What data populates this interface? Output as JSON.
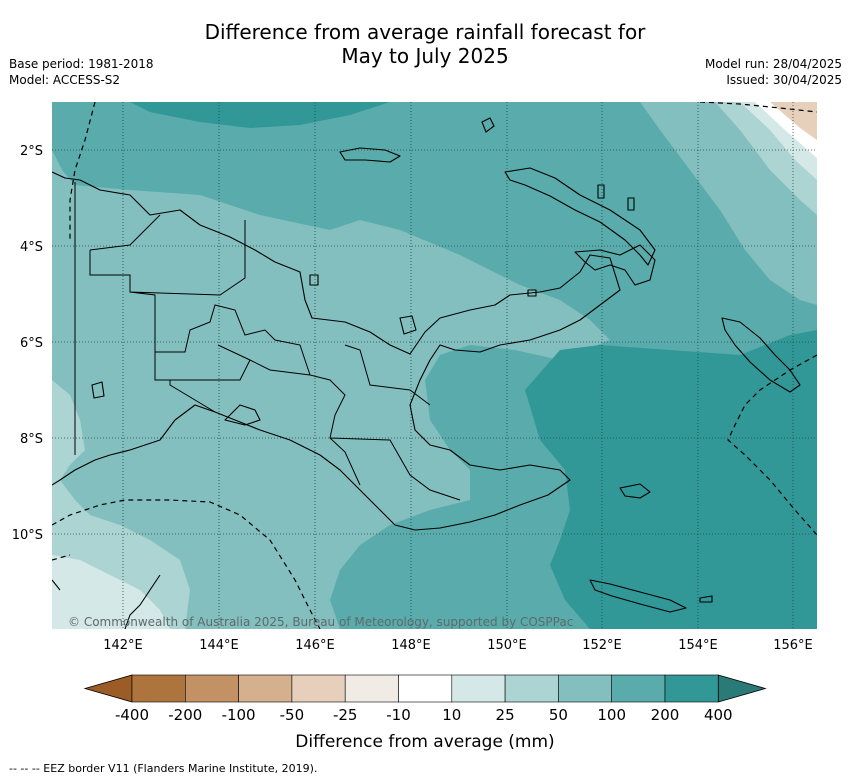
{
  "header": {
    "title_line1": "Difference from average rainfall forecast for",
    "title_line2": "May to July 2025",
    "base_period": "Base period: 1981-2018",
    "model": "Model: ACCESS-S2",
    "model_run": "Model run: 28/04/2025",
    "issued": "Issued: 30/04/2025"
  },
  "map": {
    "lat_labels": [
      "2°S",
      "4°S",
      "6°S",
      "8°S",
      "10°S"
    ],
    "lon_labels": [
      "142°E",
      "144°E",
      "146°E",
      "148°E",
      "150°E",
      "152°E",
      "154°E",
      "156°E"
    ],
    "copyright": "© Commonwealth of Australia 2025, Bureau of Meteorology, supported by COSPPac"
  },
  "colorbar": {
    "title": "Difference from average (mm)",
    "labels": [
      "-400",
      "-200",
      "-100",
      "-50",
      "-25",
      "-10",
      "10",
      "25",
      "50",
      "100",
      "200",
      "400"
    ],
    "colors": [
      "#9c5c26",
      "#ae743e",
      "#c29264",
      "#d4b08f",
      "#e6d0bc",
      "#f1ebe6",
      "#ffffff",
      "#d4e8e7",
      "#acd4d3",
      "#84bfbf",
      "#5aabab",
      "#319797",
      "#2a7a78"
    ]
  },
  "footer": {
    "legend": "--  --  -- EEZ border V11 (Flanders Marine Institute, 2019)."
  }
}
